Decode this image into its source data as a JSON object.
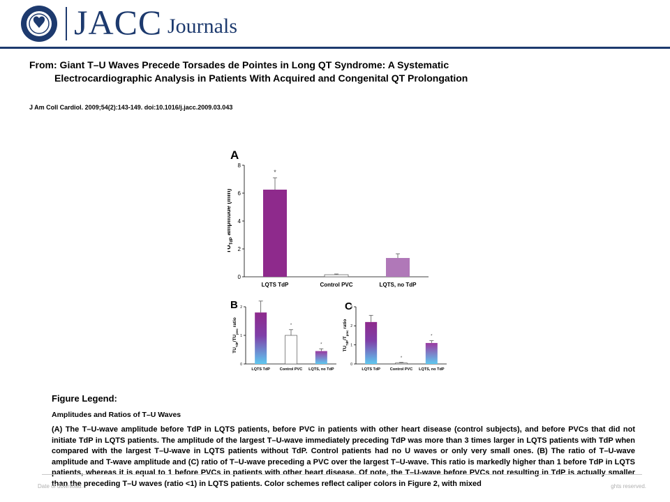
{
  "header": {
    "brand": "JACC",
    "brand_suffix": "Journals",
    "seal_text": "AMERICAN COLLEGE of CARDIOLOGY"
  },
  "article": {
    "title_line1": "From: Giant T–U Waves Precede Torsades de Pointes in Long QT Syndrome: A Systematic",
    "title_line2": "Electrocardiographic Analysis in Patients With Acquired and Congenital QT Prolongation",
    "citation": "J Am Coll Cardiol. 2009;54(2):143-149. doi:10.1016/j.jacc.2009.03.043"
  },
  "colors": {
    "brand_navy": "#1d3a6e",
    "bar_purple": "#8e2a8c",
    "bar_light_purple": "#b078b8",
    "bar_blue": "#5fc8f0"
  },
  "chart_data": [
    {
      "panel": "A",
      "type": "bar",
      "ylabel": "TU",
      "ylabel_sub": "TdP",
      "ylabel_rest": " amplitude (mm)",
      "ylim": [
        0,
        8
      ],
      "yticks": [
        "0",
        "2",
        "4",
        "6",
        "8"
      ],
      "categories": [
        "LQTS TdP",
        "Control PVC",
        "LQTS, no TdP"
      ],
      "values": [
        6.25,
        0.15,
        1.35
      ],
      "errors": [
        0.85,
        0.05,
        0.3
      ],
      "significance": [
        "*",
        "",
        ""
      ]
    },
    {
      "panel": "B",
      "type": "bar",
      "ylabel": "TU",
      "ylabel_sub": "TdP",
      "ylabel_mid": "/TU",
      "ylabel_sub2": "prec",
      "ylabel_rest": " ratio",
      "ylim": [
        0,
        2
      ],
      "yticks": [
        "0",
        "1",
        "2"
      ],
      "categories": [
        "LQTS TdP",
        "Control PVC",
        "LQTS, no TdP"
      ],
      "values": [
        1.8,
        1.0,
        0.45
      ],
      "errors": [
        0.4,
        0.2,
        0.08
      ],
      "significance": [
        "",
        "*",
        "*"
      ]
    },
    {
      "panel": "C",
      "type": "bar",
      "ylabel": "TU",
      "ylabel_sub": "TdP",
      "ylabel_mid": "/T",
      "ylabel_sub2": "prec",
      "ylabel_rest": " ratio",
      "ylim": [
        0,
        3
      ],
      "yticks": [
        "0",
        "1",
        "2",
        "3"
      ],
      "categories": [
        "LQTS TdP",
        "Control PVC",
        "LQTS, no TdP"
      ],
      "values": [
        2.2,
        0.05,
        1.1
      ],
      "errors": [
        0.35,
        0.03,
        0.12
      ],
      "significance": [
        "",
        "*",
        "*"
      ]
    }
  ],
  "legend": {
    "heading": "Figure Legend:",
    "subtitle": "Amplitudes and Ratios of T–U Waves",
    "body": "(A) The T–U-wave amplitude before TdP in LQTS patients, before PVC in patients with other heart disease (control subjects), and before PVCs that did not initiate TdP in LQTS patients. The amplitude of the largest T–U-wave immediately preceding TdP was more than 3 times larger in LQTS patients with TdP when compared with the largest T–U-wave in LQTS patients without TdP. Control patients had no U waves or only very small ones. (B) The ratio of T–U-wave amplitude and T-wave amplitude and (C) ratio of T–U-wave preceding a PVC over the largest T–U-wave. This ratio is markedly higher than 1 before TdP in LQTS patients, whereas it is equal to 1 before PVCs in patients with other heart disease. Of note, the T–U-wave before PVCs not resulting in TdP is actually smaller than the preceding T–U waves (ratio <1) in LQTS patients. Color schemes reflect caliper colors in Figure 2, with mixed"
  },
  "footer": {
    "left": "Date of download:",
    "right": "ghts reserved."
  }
}
